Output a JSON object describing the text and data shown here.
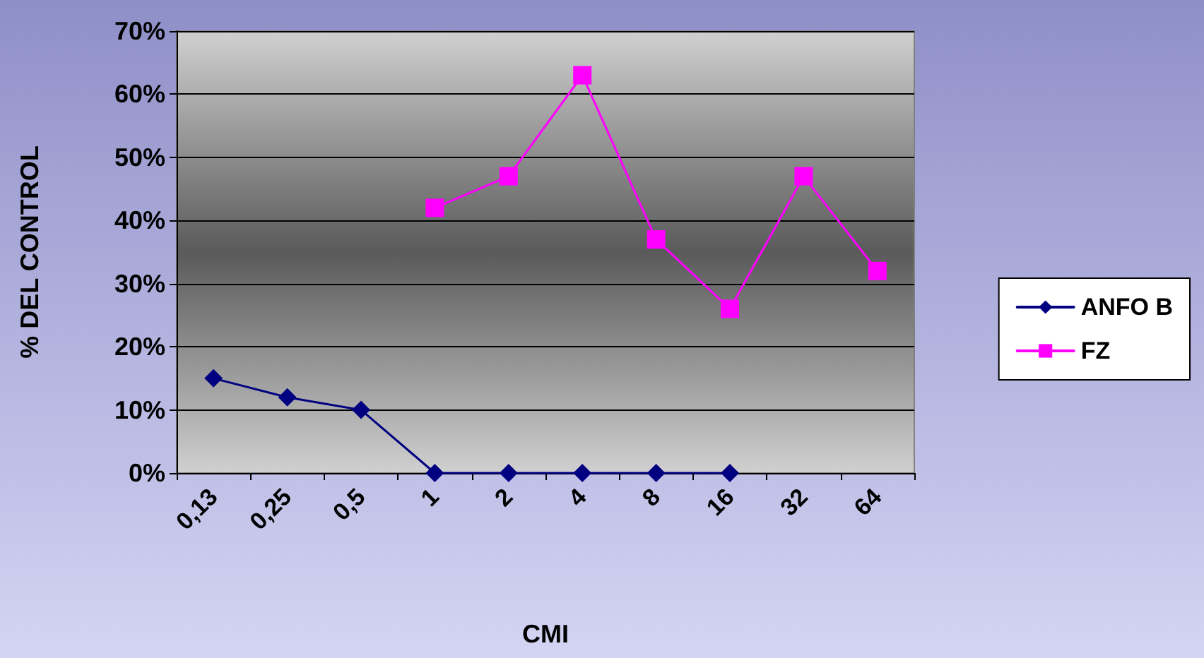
{
  "chart_data": {
    "type": "line",
    "xlabel": "CMI",
    "ylabel": "% DEL CONTROL",
    "categories": [
      "0,13",
      "0,25",
      "0,5",
      "1",
      "2",
      "4",
      "8",
      "16",
      "32",
      "64"
    ],
    "series": [
      {
        "name": "ANFO B",
        "color": "#000080",
        "marker": "diamond",
        "values": [
          15,
          12,
          10,
          0,
          0,
          0,
          0,
          0,
          null,
          null
        ]
      },
      {
        "name": "FZ",
        "color": "#ff00ff",
        "marker": "square",
        "values": [
          null,
          null,
          null,
          42,
          47,
          63,
          37,
          26,
          47,
          32
        ]
      }
    ],
    "ylim": [
      0,
      70
    ],
    "yticks": [
      {
        "value": 0,
        "label": "0%"
      },
      {
        "value": 10,
        "label": "10%"
      },
      {
        "value": 20,
        "label": "20%"
      },
      {
        "value": 30,
        "label": "30%"
      },
      {
        "value": 40,
        "label": "40%"
      },
      {
        "value": 50,
        "label": "50%"
      },
      {
        "value": 60,
        "label": "60%"
      },
      {
        "value": 70,
        "label": "70%"
      }
    ],
    "grid": "y",
    "legend": "right",
    "line_style": "solid"
  }
}
